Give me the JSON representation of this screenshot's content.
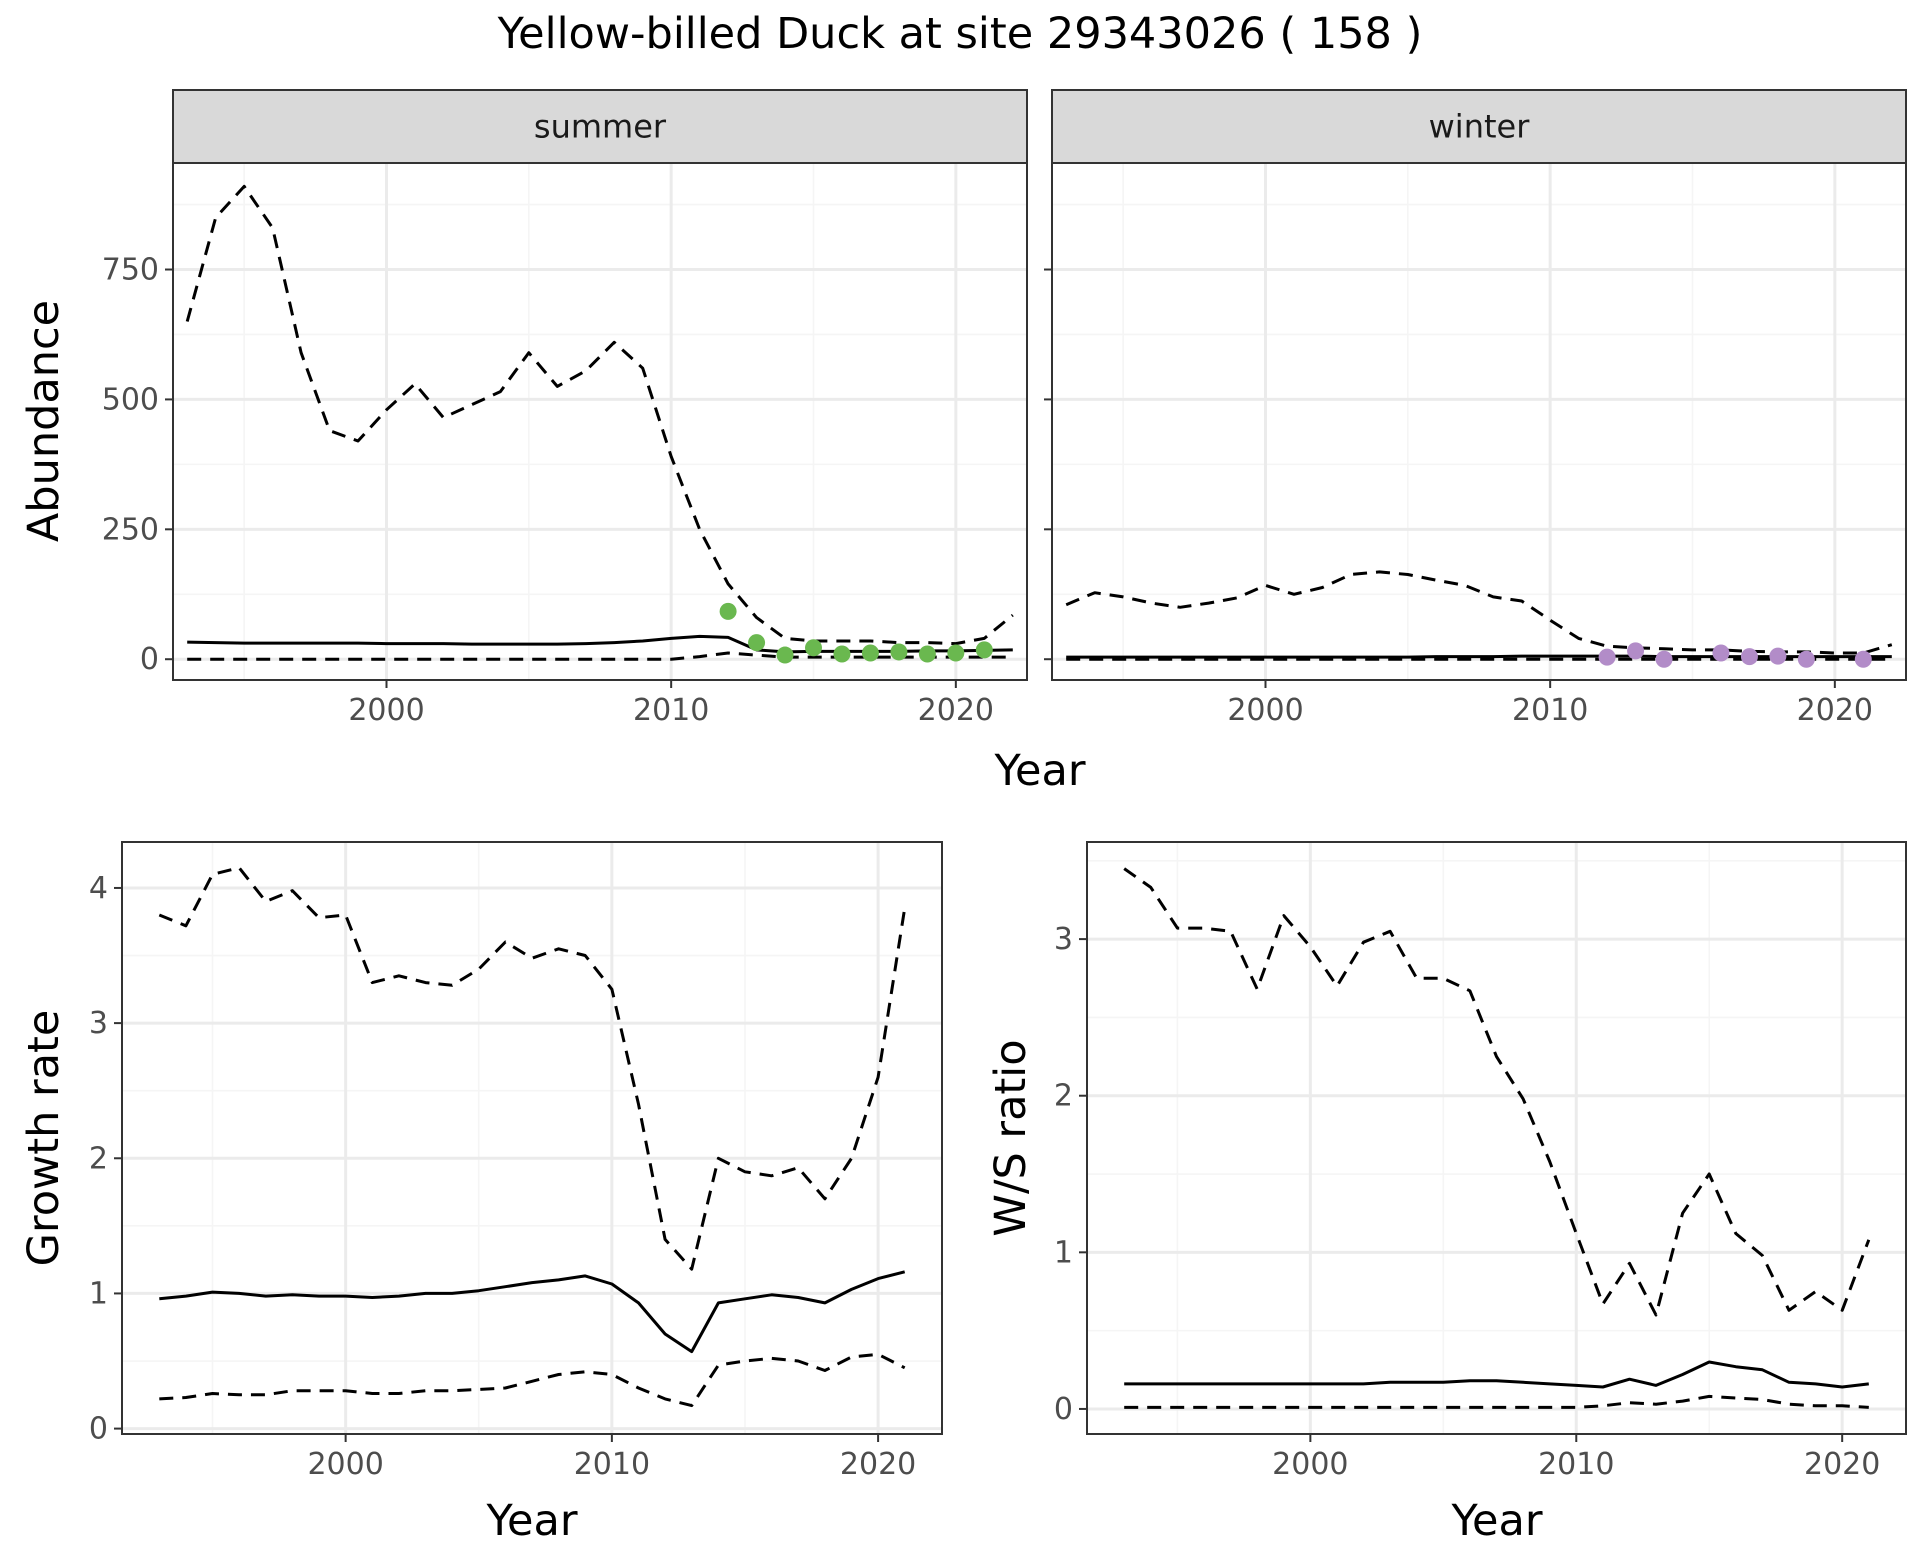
{
  "title": "Yellow-billed Duck at site 29343026 ( 158 )",
  "colors": {
    "summer_points": "#6ab84f",
    "winter_points": "#b28cc8",
    "line": "#000000",
    "strip_fill": "#d9d9d9",
    "grid_major": "#ebebeb",
    "grid_minor": "#f5f5f5"
  },
  "chart_data": [
    {
      "type": "line",
      "facet": "summer",
      "xlabel": "Year",
      "ylabel": "Abundance",
      "xlim": [
        1992.5,
        2022.5
      ],
      "ylim": [
        -40,
        955
      ],
      "x_ticks": [
        2000,
        2010,
        2020
      ],
      "x_tick_labels": [
        "2000",
        "2010",
        "2020"
      ],
      "y_ticks": [
        0,
        250,
        500,
        750
      ],
      "y_tick_labels": [
        "0",
        "250",
        "500",
        "750"
      ],
      "grid": true,
      "series": [
        {
          "role": "estimate",
          "style": "solid",
          "x": [
            1993,
            1994,
            1995,
            1996,
            1997,
            1998,
            1999,
            2000,
            2001,
            2002,
            2003,
            2004,
            2005,
            2006,
            2007,
            2008,
            2009,
            2010,
            2011,
            2012,
            2013,
            2014,
            2015,
            2016,
            2017,
            2018,
            2019,
            2020,
            2021,
            2022
          ],
          "y": [
            33,
            32,
            31,
            31,
            31,
            31,
            31,
            30,
            30,
            30,
            29,
            29,
            29,
            29,
            30,
            32,
            35,
            40,
            44,
            42,
            18,
            14,
            15,
            15,
            15,
            15,
            16,
            16,
            17,
            18
          ]
        },
        {
          "role": "upper",
          "style": "dashed",
          "x": [
            1993,
            1994,
            1995,
            1996,
            1997,
            1998,
            1999,
            2000,
            2001,
            2002,
            2003,
            2004,
            2005,
            2006,
            2007,
            2008,
            2009,
            2010,
            2011,
            2012,
            2013,
            2014,
            2015,
            2016,
            2017,
            2018,
            2019,
            2020,
            2021,
            2022
          ],
          "y": [
            650,
            850,
            910,
            830,
            590,
            440,
            420,
            480,
            530,
            465,
            490,
            515,
            590,
            525,
            555,
            610,
            560,
            390,
            250,
            145,
            80,
            40,
            35,
            35,
            35,
            32,
            32,
            30,
            40,
            85
          ]
        },
        {
          "role": "lower",
          "style": "dashed",
          "x": [
            1993,
            1994,
            1995,
            1996,
            1997,
            1998,
            1999,
            2000,
            2001,
            2002,
            2003,
            2004,
            2005,
            2006,
            2007,
            2008,
            2009,
            2010,
            2011,
            2012,
            2013,
            2014,
            2015,
            2016,
            2017,
            2018,
            2019,
            2020,
            2021,
            2022
          ],
          "y": [
            0,
            0,
            0,
            0,
            0,
            0,
            0,
            0,
            0,
            0,
            0,
            0,
            0,
            0,
            0,
            0,
            0,
            0,
            5,
            12,
            8,
            4,
            4,
            4,
            4,
            4,
            4,
            4,
            4,
            4
          ]
        },
        {
          "role": "observed",
          "style": "points",
          "x": [
            2012,
            2013,
            2014,
            2015,
            2016,
            2017,
            2018,
            2019,
            2020,
            2021
          ],
          "y": [
            92,
            32,
            8,
            22,
            10,
            12,
            14,
            10,
            12,
            18
          ]
        }
      ]
    },
    {
      "type": "line",
      "facet": "winter",
      "xlabel": "Year",
      "ylabel": "",
      "xlim": [
        1992.5,
        2022.5
      ],
      "ylim": [
        -40,
        955
      ],
      "x_ticks": [
        2000,
        2010,
        2020
      ],
      "x_tick_labels": [
        "2000",
        "2010",
        "2020"
      ],
      "y_ticks": [
        0,
        250,
        500,
        750
      ],
      "y_tick_labels": [],
      "grid": true,
      "series": [
        {
          "role": "estimate",
          "style": "solid",
          "x": [
            1993,
            1994,
            1995,
            1996,
            1997,
            1998,
            1999,
            2000,
            2001,
            2002,
            2003,
            2004,
            2005,
            2006,
            2007,
            2008,
            2009,
            2010,
            2011,
            2012,
            2013,
            2014,
            2015,
            2016,
            2017,
            2018,
            2019,
            2020,
            2021,
            2022
          ],
          "y": [
            4,
            4,
            4,
            4,
            4,
            4,
            4,
            4,
            4,
            4,
            4,
            4,
            4,
            5,
            5,
            5,
            6,
            6,
            6,
            6,
            6,
            5,
            5,
            5,
            5,
            5,
            5,
            5,
            5,
            5
          ]
        },
        {
          "role": "upper",
          "style": "dashed",
          "x": [
            1993,
            1994,
            1995,
            1996,
            1997,
            1998,
            1999,
            2000,
            2001,
            2002,
            2003,
            2004,
            2005,
            2006,
            2007,
            2008,
            2009,
            2010,
            2011,
            2012,
            2013,
            2014,
            2015,
            2016,
            2017,
            2018,
            2019,
            2020,
            2021,
            2022
          ],
          "y": [
            105,
            128,
            120,
            108,
            100,
            108,
            118,
            142,
            125,
            138,
            163,
            168,
            163,
            152,
            142,
            120,
            112,
            75,
            40,
            25,
            22,
            20,
            18,
            18,
            15,
            14,
            14,
            12,
            12,
            28
          ]
        },
        {
          "role": "lower",
          "style": "dashed",
          "x": [
            1993,
            1994,
            1995,
            1996,
            1997,
            1998,
            1999,
            2000,
            2001,
            2002,
            2003,
            2004,
            2005,
            2006,
            2007,
            2008,
            2009,
            2010,
            2011,
            2012,
            2013,
            2014,
            2015,
            2016,
            2017,
            2018,
            2019,
            2020,
            2021,
            2022
          ],
          "y": [
            0,
            0,
            0,
            0,
            0,
            0,
            0,
            0,
            0,
            0,
            0,
            0,
            0,
            0,
            0,
            0,
            0,
            0,
            0,
            0,
            0,
            0,
            0,
            0,
            0,
            0,
            0,
            0,
            0,
            0
          ]
        },
        {
          "role": "observed",
          "style": "points",
          "x": [
            2012,
            2013,
            2014,
            2016,
            2017,
            2018,
            2019,
            2021
          ],
          "y": [
            4,
            16,
            0,
            12,
            5,
            6,
            0,
            0
          ]
        }
      ]
    },
    {
      "type": "line",
      "facet": "",
      "xlabel": "Year",
      "ylabel": "Growth rate",
      "xlim": [
        1991.6,
        2022.4
      ],
      "ylim": [
        -0.04,
        4.34
      ],
      "x_ticks": [
        2000,
        2010,
        2020
      ],
      "x_tick_labels": [
        "2000",
        "2010",
        "2020"
      ],
      "y_ticks": [
        0,
        1,
        2,
        3,
        4
      ],
      "y_tick_labels": [
        "0",
        "1",
        "2",
        "3",
        "4"
      ],
      "grid": true,
      "series": [
        {
          "role": "estimate",
          "style": "solid",
          "x": [
            1993,
            1994,
            1995,
            1996,
            1997,
            1998,
            1999,
            2000,
            2001,
            2002,
            2003,
            2004,
            2005,
            2006,
            2007,
            2008,
            2009,
            2010,
            2011,
            2012,
            2013,
            2014,
            2015,
            2016,
            2017,
            2018,
            2019,
            2020,
            2021
          ],
          "y": [
            0.96,
            0.98,
            1.01,
            1.0,
            0.98,
            0.99,
            0.98,
            0.98,
            0.97,
            0.98,
            1.0,
            1.0,
            1.02,
            1.05,
            1.08,
            1.1,
            1.13,
            1.07,
            0.93,
            0.7,
            0.57,
            0.93,
            0.96,
            0.99,
            0.97,
            0.93,
            1.03,
            1.11,
            1.16
          ]
        },
        {
          "role": "upper",
          "style": "dashed",
          "x": [
            1993,
            1994,
            1995,
            1996,
            1997,
            1998,
            1999,
            2000,
            2001,
            2002,
            2003,
            2004,
            2005,
            2006,
            2007,
            2008,
            2009,
            2010,
            2011,
            2012,
            2013,
            2014,
            2015,
            2016,
            2017,
            2018,
            2019,
            2020,
            2021
          ],
          "y": [
            3.8,
            3.72,
            4.1,
            4.15,
            3.9,
            3.98,
            3.78,
            3.8,
            3.3,
            3.35,
            3.3,
            3.28,
            3.4,
            3.6,
            3.48,
            3.55,
            3.5,
            3.25,
            2.4,
            1.4,
            1.18,
            2.0,
            1.9,
            1.87,
            1.93,
            1.7,
            2.0,
            2.6,
            3.85
          ]
        },
        {
          "role": "lower",
          "style": "dashed",
          "x": [
            1993,
            1994,
            1995,
            1996,
            1997,
            1998,
            1999,
            2000,
            2001,
            2002,
            2003,
            2004,
            2005,
            2006,
            2007,
            2008,
            2009,
            2010,
            2011,
            2012,
            2013,
            2014,
            2015,
            2016,
            2017,
            2018,
            2019,
            2020,
            2021
          ],
          "y": [
            0.22,
            0.23,
            0.26,
            0.25,
            0.25,
            0.28,
            0.28,
            0.28,
            0.26,
            0.26,
            0.28,
            0.28,
            0.29,
            0.3,
            0.35,
            0.4,
            0.42,
            0.4,
            0.3,
            0.22,
            0.17,
            0.47,
            0.5,
            0.52,
            0.5,
            0.43,
            0.53,
            0.55,
            0.45
          ]
        }
      ]
    },
    {
      "type": "line",
      "facet": "",
      "xlabel": "Year",
      "ylabel": "W/S ratio",
      "xlim": [
        1991.6,
        2022.4
      ],
      "ylim": [
        -0.16,
        3.62
      ],
      "x_ticks": [
        2000,
        2010,
        2020
      ],
      "x_tick_labels": [
        "2000",
        "2010",
        "2020"
      ],
      "y_ticks": [
        0,
        1,
        2,
        3
      ],
      "y_tick_labels": [
        "0",
        "1",
        "2",
        "3"
      ],
      "grid": true,
      "series": [
        {
          "role": "estimate",
          "style": "solid",
          "x": [
            1993,
            1994,
            1995,
            1996,
            1997,
            1998,
            1999,
            2000,
            2001,
            2002,
            2003,
            2004,
            2005,
            2006,
            2007,
            2008,
            2009,
            2010,
            2011,
            2012,
            2013,
            2014,
            2015,
            2016,
            2017,
            2018,
            2019,
            2020,
            2021
          ],
          "y": [
            0.16,
            0.16,
            0.16,
            0.16,
            0.16,
            0.16,
            0.16,
            0.16,
            0.16,
            0.16,
            0.17,
            0.17,
            0.17,
            0.18,
            0.18,
            0.17,
            0.16,
            0.15,
            0.14,
            0.19,
            0.15,
            0.22,
            0.3,
            0.27,
            0.25,
            0.17,
            0.16,
            0.14,
            0.16
          ]
        },
        {
          "role": "upper",
          "style": "dashed",
          "x": [
            1993,
            1994,
            1995,
            1996,
            1997,
            1998,
            1999,
            2000,
            2001,
            2002,
            2003,
            2004,
            2005,
            2006,
            2007,
            2008,
            2009,
            2010,
            2011,
            2012,
            2013,
            2014,
            2015,
            2016,
            2017,
            2018,
            2019,
            2020,
            2021
          ],
          "y": [
            3.45,
            3.33,
            3.07,
            3.07,
            3.05,
            2.68,
            3.15,
            2.95,
            2.7,
            2.98,
            3.05,
            2.75,
            2.75,
            2.67,
            2.25,
            1.98,
            1.58,
            1.12,
            0.67,
            0.93,
            0.6,
            1.25,
            1.5,
            1.12,
            0.98,
            0.63,
            0.75,
            0.63,
            1.08
          ]
        },
        {
          "role": "lower",
          "style": "dashed",
          "x": [
            1993,
            1994,
            1995,
            1996,
            1997,
            1998,
            1999,
            2000,
            2001,
            2002,
            2003,
            2004,
            2005,
            2006,
            2007,
            2008,
            2009,
            2010,
            2011,
            2012,
            2013,
            2014,
            2015,
            2016,
            2017,
            2018,
            2019,
            2020,
            2021
          ],
          "y": [
            0.01,
            0.01,
            0.01,
            0.01,
            0.01,
            0.01,
            0.01,
            0.01,
            0.01,
            0.01,
            0.01,
            0.01,
            0.01,
            0.01,
            0.01,
            0.01,
            0.01,
            0.01,
            0.02,
            0.04,
            0.03,
            0.05,
            0.08,
            0.07,
            0.06,
            0.03,
            0.02,
            0.02,
            0.01
          ]
        }
      ]
    }
  ]
}
